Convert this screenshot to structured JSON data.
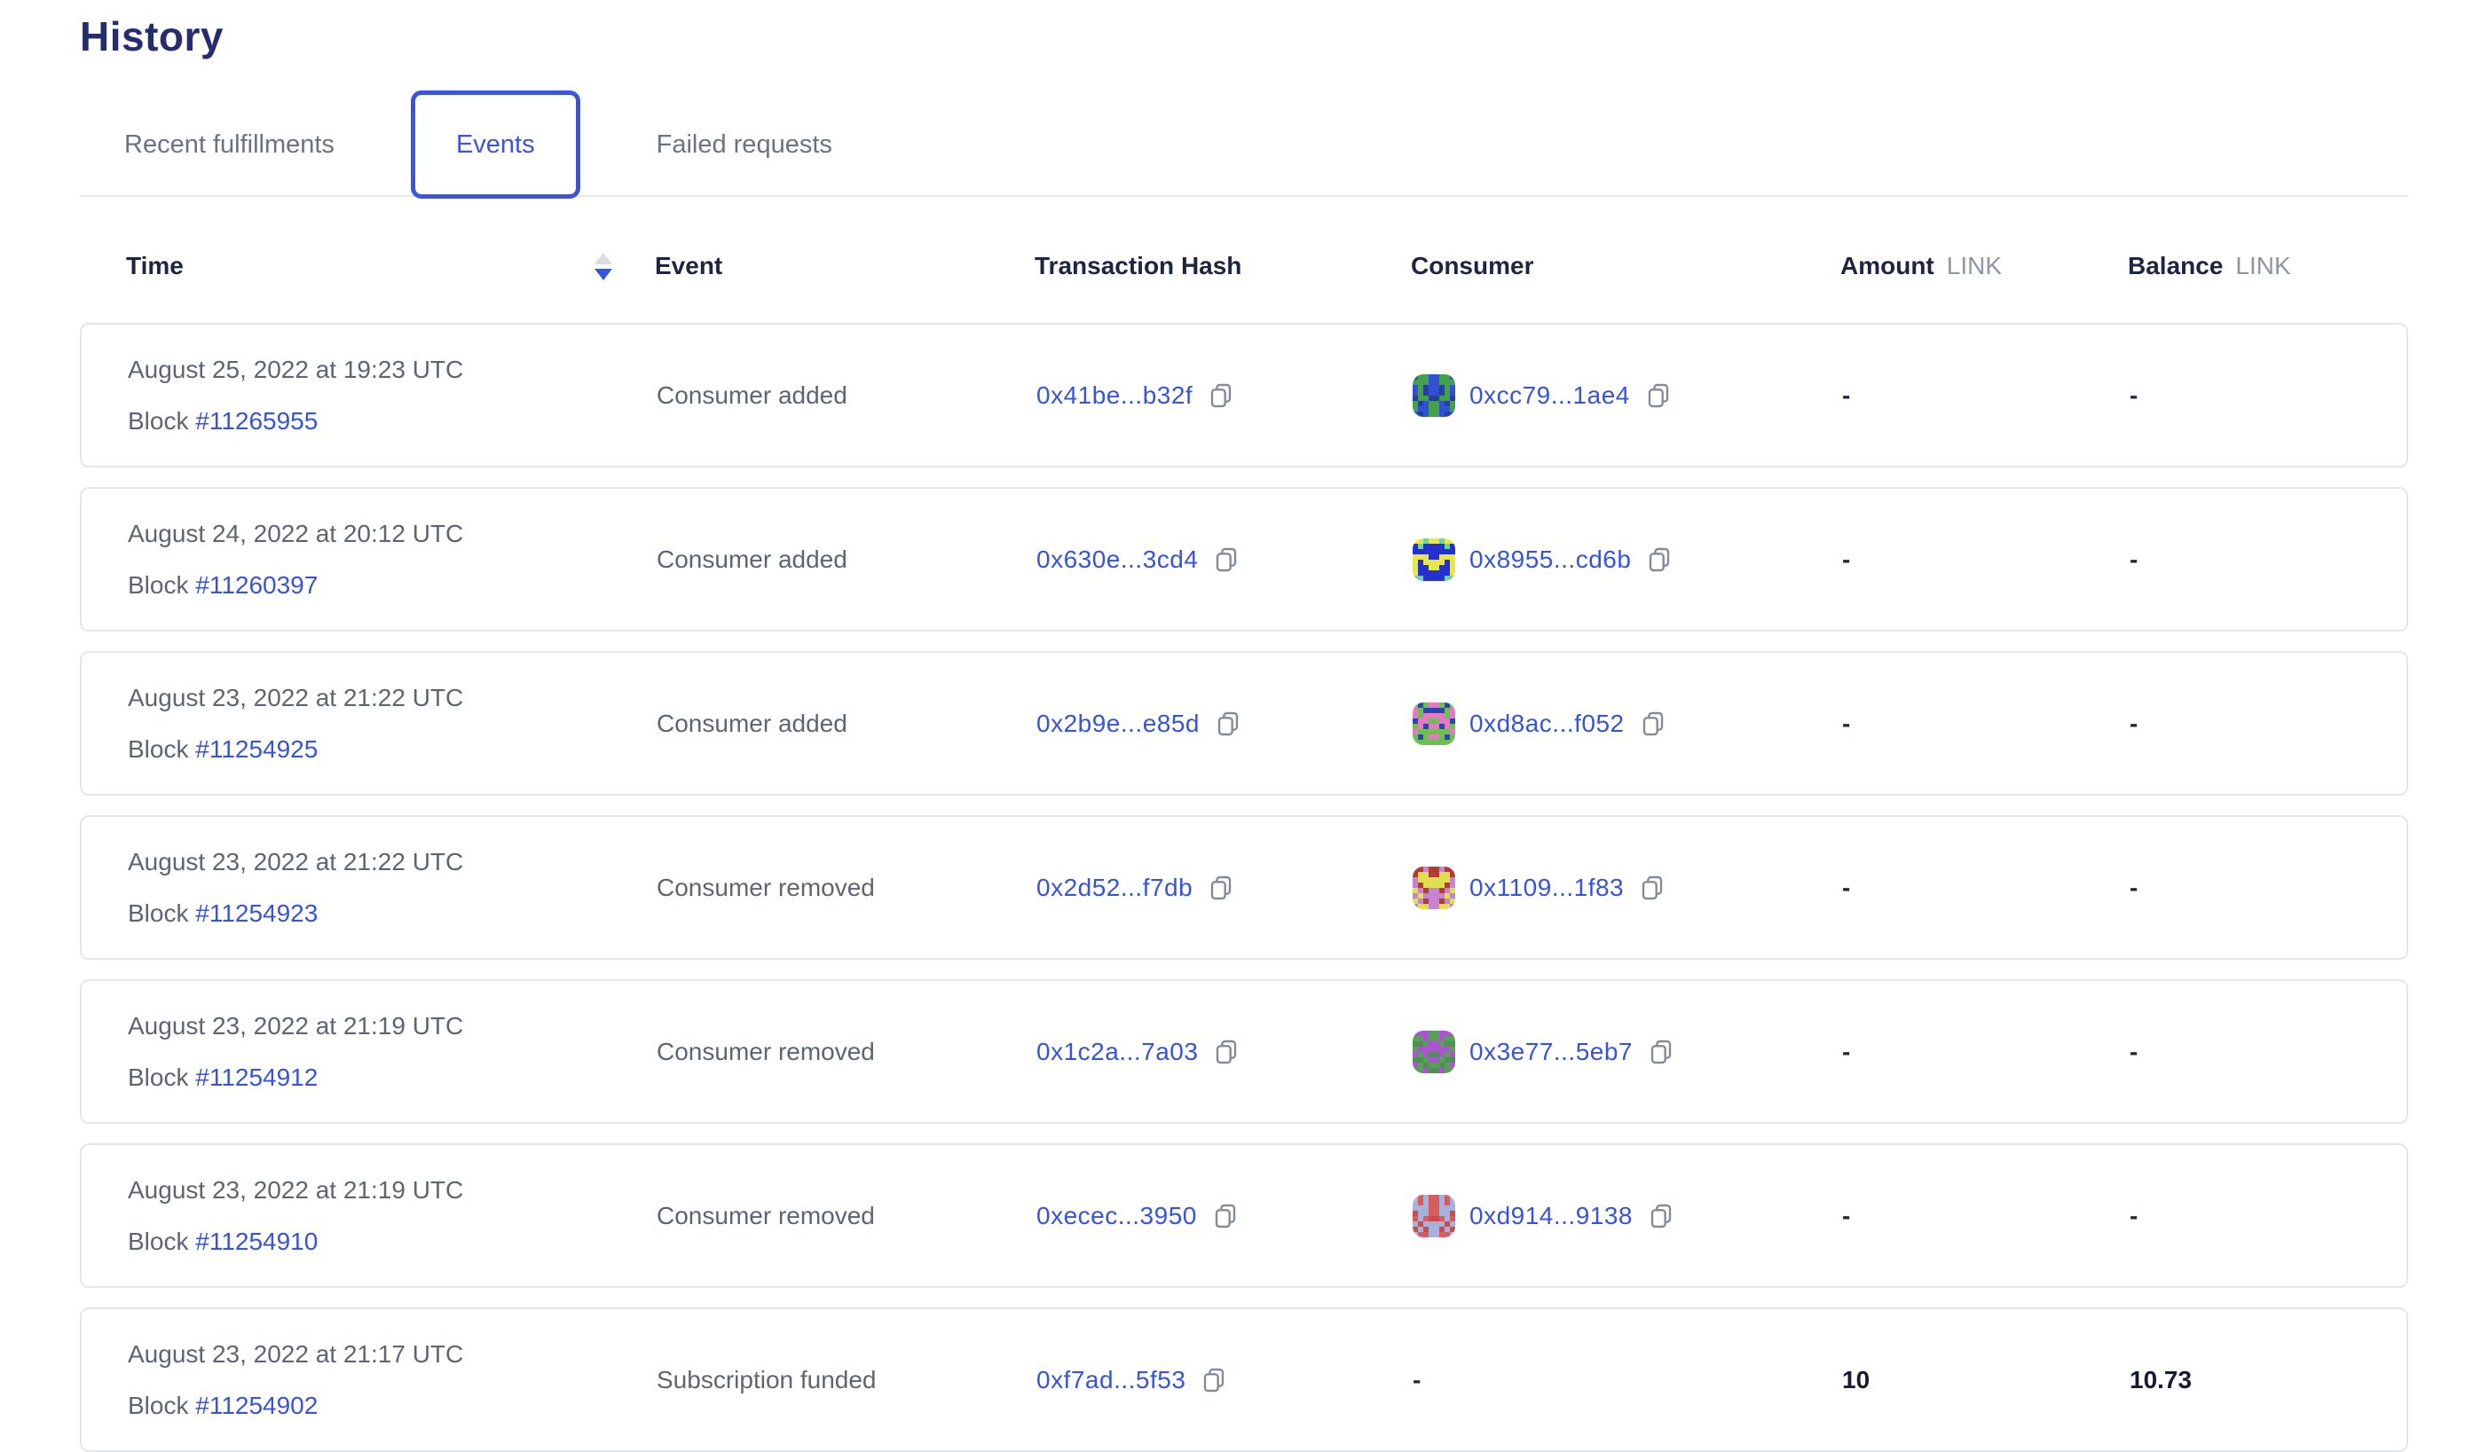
{
  "page": {
    "title": "History"
  },
  "tabs": [
    {
      "label": "Recent fulfillments",
      "active": false
    },
    {
      "label": "Events",
      "active": true
    },
    {
      "label": "Failed requests",
      "active": false
    }
  ],
  "table": {
    "headers": {
      "time": "Time",
      "event": "Event",
      "tx": "Transaction Hash",
      "consumer": "Consumer",
      "amount": "Amount",
      "balance": "Balance",
      "unit": "LINK"
    },
    "rows": [
      {
        "date": "August 25, 2022 at 19:23 UTC",
        "block_label": "Block",
        "block": "#11265955",
        "event": "Consumer added",
        "tx": "0x41be...b32f",
        "consumer": "0xcc79...1ae4",
        "amount": "-",
        "balance": "-",
        "avatar": {
          "bg": "#44a14b",
          "fg": "#3150d5",
          "spot": "#27409f"
        }
      },
      {
        "date": "August 24, 2022 at 20:12 UTC",
        "block_label": "Block",
        "block": "#11260397",
        "event": "Consumer added",
        "tx": "0x630e...3cd4",
        "consumer": "0x8955...cd6b",
        "amount": "-",
        "balance": "-",
        "avatar": {
          "bg": "#2430cf",
          "fg": "#e8e84c",
          "spot": "#66d79e"
        }
      },
      {
        "date": "August 23, 2022 at 21:22 UTC",
        "block_label": "Block",
        "block": "#11254925",
        "event": "Consumer added",
        "tx": "0x2b9e...e85d",
        "consumer": "0xd8ac...f052",
        "amount": "-",
        "balance": "-",
        "avatar": {
          "bg": "#6cc04f",
          "fg": "#e878c4",
          "spot": "#2b44ae"
        }
      },
      {
        "date": "August 23, 2022 at 21:22 UTC",
        "block_label": "Block",
        "block": "#11254923",
        "event": "Consumer removed",
        "tx": "0x2d52...f7db",
        "consumer": "0x1109...1f83",
        "amount": "-",
        "balance": "-",
        "avatar": {
          "bg": "#c583d3",
          "fg": "#dfdf52",
          "spot": "#b23c31"
        }
      },
      {
        "date": "August 23, 2022 at 21:19 UTC",
        "block_label": "Block",
        "block": "#11254912",
        "event": "Consumer removed",
        "tx": "0x1c2a...7a03",
        "consumer": "0x3e77...5eb7",
        "amount": "-",
        "balance": "-",
        "avatar": {
          "bg": "#57a05a",
          "fg": "#ae52d5",
          "spot": "#4d9150"
        }
      },
      {
        "date": "August 23, 2022 at 21:19 UTC",
        "block_label": "Block",
        "block": "#11254910",
        "event": "Consumer removed",
        "tx": "0xecec...3950",
        "consumer": "0xd914...9138",
        "amount": "-",
        "balance": "-",
        "avatar": {
          "bg": "#d95b5b",
          "fg": "#a3b3de",
          "spot": "#cf4a4a"
        }
      },
      {
        "date": "August 23, 2022 at 21:17 UTC",
        "block_label": "Block",
        "block": "#11254902",
        "event": "Subscription funded",
        "tx": "0xf7ad...5f53",
        "consumer": "-",
        "amount": "10",
        "balance": "10.73",
        "avatar": null
      }
    ]
  },
  "colors": {
    "accent_blue": "#3a55d9",
    "link_blue": "#3753d7",
    "heading_navy": "#262d6e",
    "header_text": "#1f2440",
    "muted_gray": "#5f6570",
    "unit_gray": "#8f95a1",
    "card_border": "#e4e6e9"
  }
}
